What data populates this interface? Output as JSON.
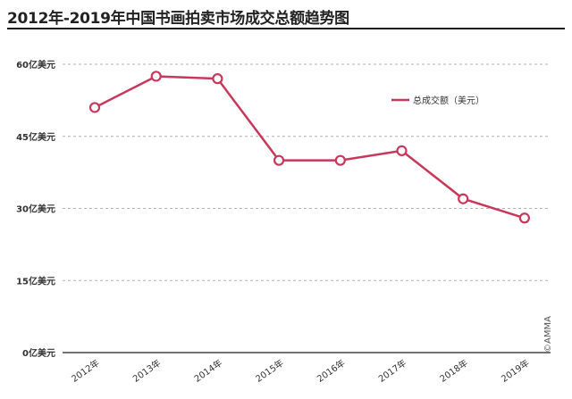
{
  "title": "2012年-2019年中国书画拍卖市场成交总额趋势图",
  "credit": "©AMMA",
  "chart_data": {
    "type": "line",
    "title": "2012年-2019年中国书画拍卖市场成交总额趋势图",
    "categories": [
      "2012年",
      "2013年",
      "2014年",
      "2015年",
      "2016年",
      "2017年",
      "2018年",
      "2019年"
    ],
    "series": [
      {
        "name": "总成交额（美元）",
        "values": [
          51,
          57.5,
          57,
          40,
          40,
          42,
          32,
          28
        ]
      }
    ],
    "y_tick_labels": [
      "0亿美元",
      "15亿美元",
      "30亿美元",
      "45亿美元",
      "60亿美元"
    ],
    "y_ticks": [
      0,
      15,
      30,
      45,
      60
    ],
    "ylim": [
      0,
      60
    ],
    "grid": true,
    "legend_position": "top-right",
    "colors": {
      "series": "#c8385a",
      "grid": "#b3b3b3",
      "axis": "#444444"
    }
  }
}
